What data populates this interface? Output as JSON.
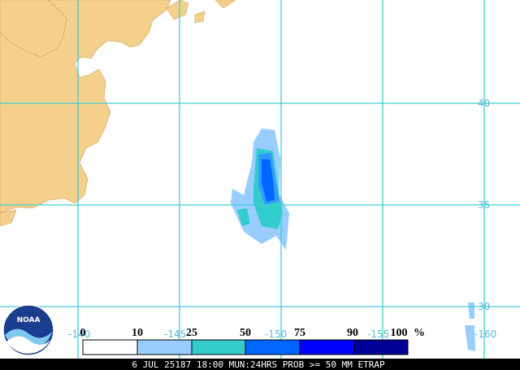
{
  "map": {
    "lat_labels": [
      "40",
      "35",
      "30"
    ],
    "lon_labels": [
      "-140",
      "-145",
      "-150",
      "-155",
      "-160"
    ],
    "legend": {
      "labels": [
        "0",
        "10",
        "25",
        "50",
        "75",
        "90",
        "100"
      ],
      "unit": "%"
    },
    "logo": "NOAA",
    "caption": "6 JUL 25187 18:00 MUN:24HRS PROB >= 50 MM ETRAP"
  }
}
